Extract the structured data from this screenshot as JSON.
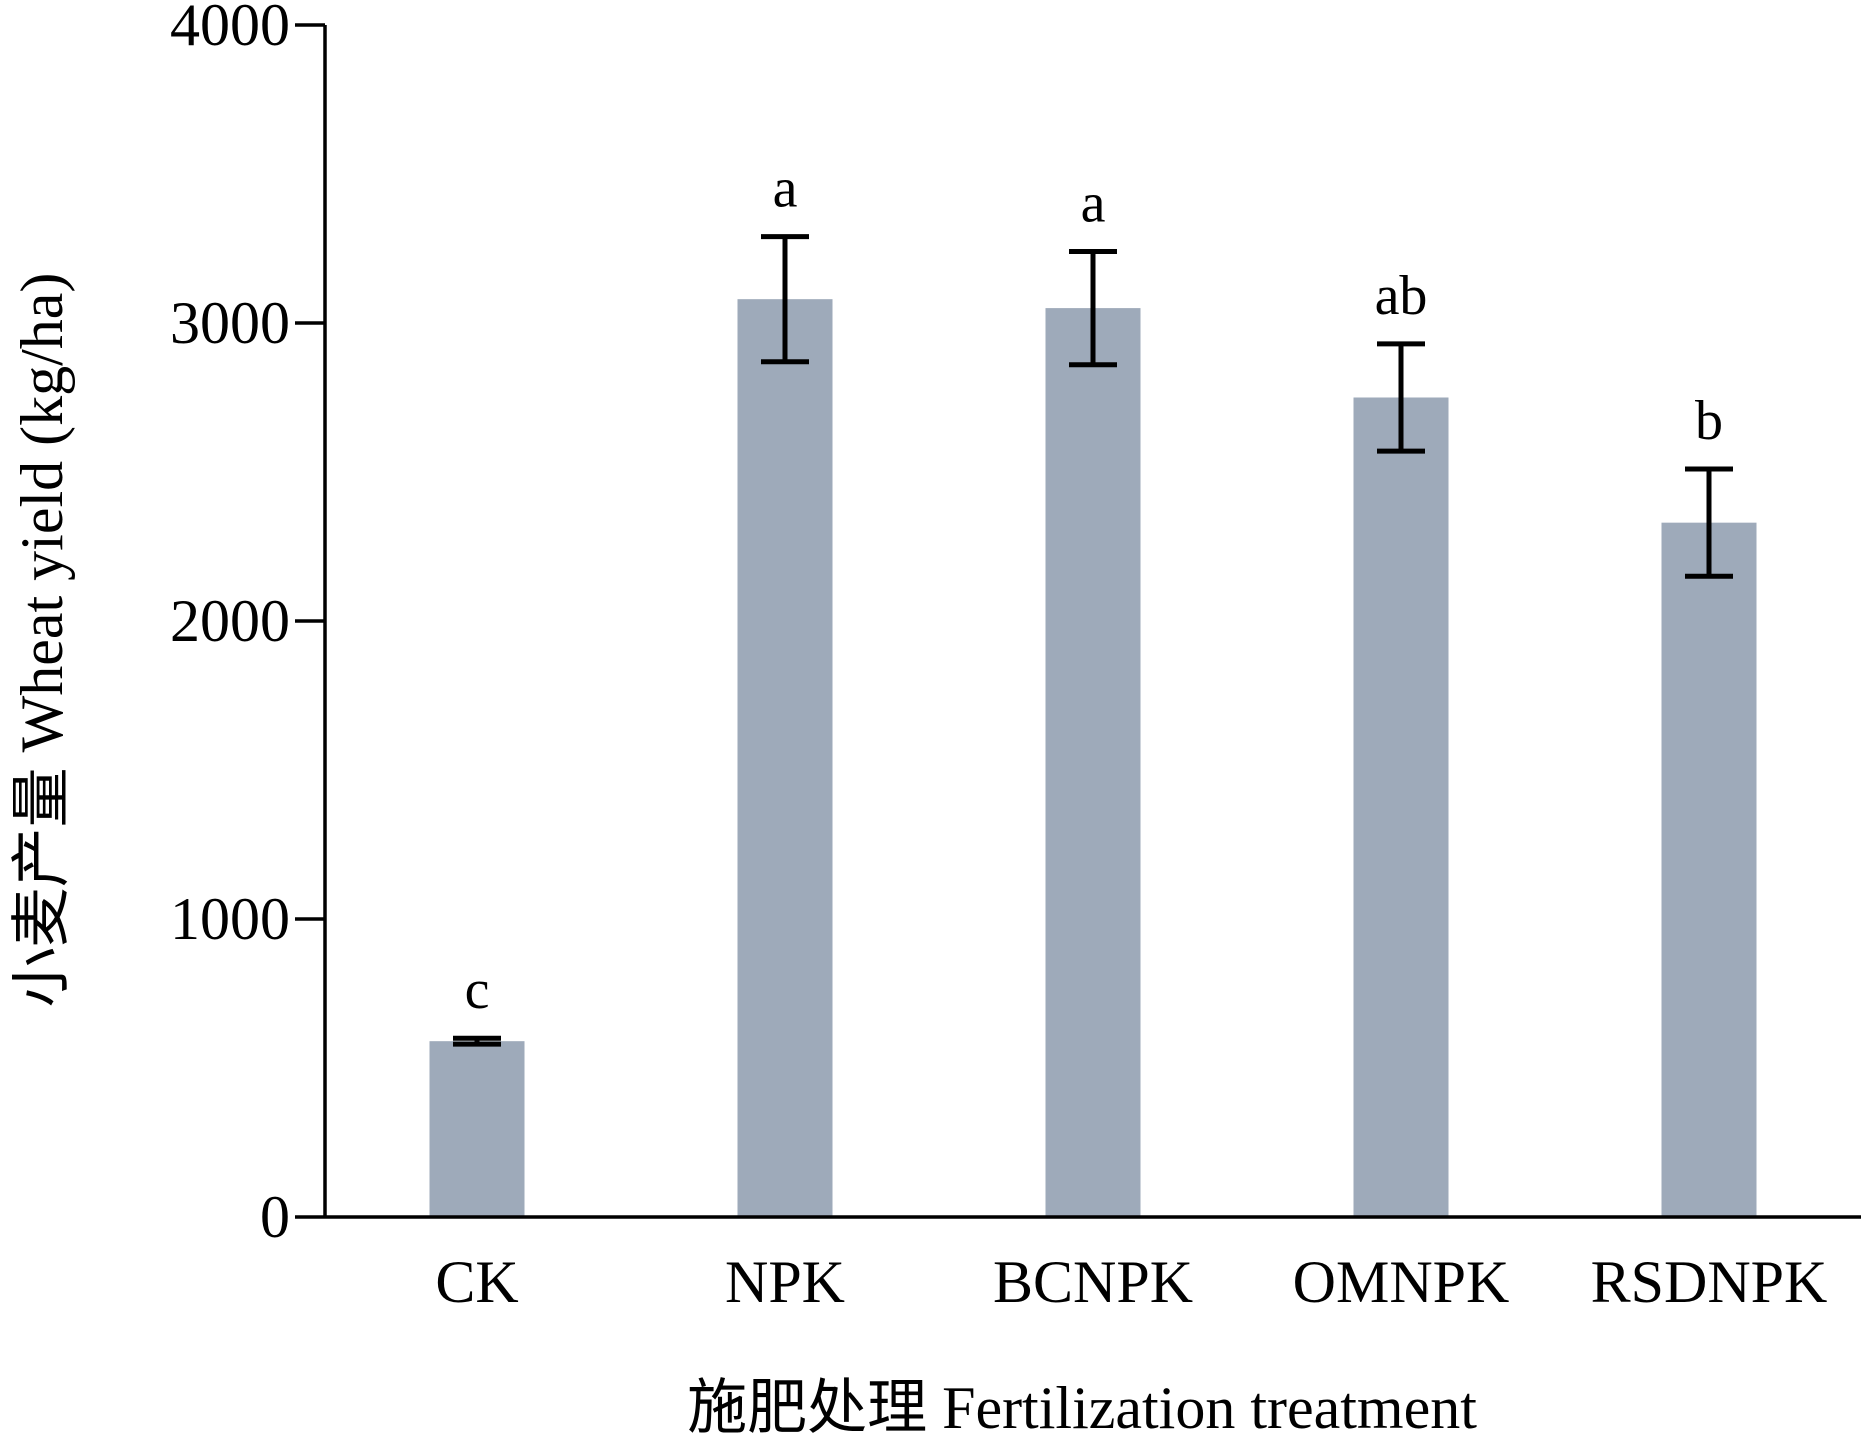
{
  "chart_data": {
    "type": "bar",
    "title": "",
    "xlabel": "施肥处理 Fertilization treatment",
    "ylabel": "小麦产量 Wheat yield (kg/ha)",
    "ylim": [
      0,
      4000
    ],
    "yticks": [
      0,
      1000,
      2000,
      3000,
      4000
    ],
    "categories": [
      "CK",
      "NPK",
      "BCNPK",
      "OMNPK",
      "RSDNPK"
    ],
    "values": [
      590,
      3080,
      3050,
      2750,
      2330
    ],
    "error": [
      10,
      210,
      190,
      180,
      180
    ],
    "significance_labels": [
      "c",
      "a",
      "a",
      "ab",
      "b"
    ],
    "bar_color": "#9eaaba",
    "grid": false,
    "legend": "none"
  }
}
